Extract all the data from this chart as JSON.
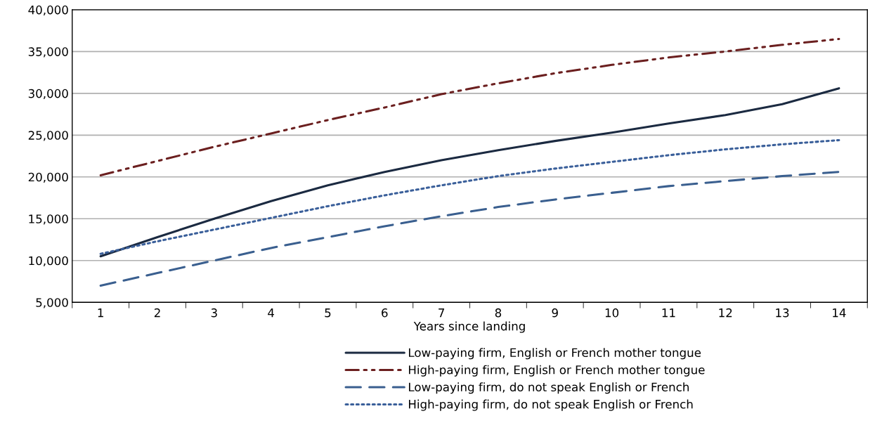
{
  "chart_data": {
    "type": "line",
    "xlabel": "Years since landing",
    "categories": [
      "1",
      "2",
      "3",
      "4",
      "5",
      "6",
      "7",
      "8",
      "9",
      "10",
      "11",
      "12",
      "13",
      "14"
    ],
    "series": [
      {
        "name": "Low-paying firm, English or French mother tongue",
        "color": "#1b2a41",
        "line_style": "solid",
        "values": [
          10500,
          12800,
          15000,
          17100,
          19000,
          20600,
          22000,
          23200,
          24300,
          25300,
          26400,
          27400,
          28700,
          30600
        ]
      },
      {
        "name": "High-paying firm, English or French mother tongue",
        "color": "#6b1f1f",
        "line_style": "dashdotdot",
        "values": [
          20200,
          21900,
          23600,
          25200,
          26800,
          28300,
          29900,
          31200,
          32400,
          33400,
          34300,
          35000,
          35800,
          36500
        ]
      },
      {
        "name": "Low-paying firm, do not speak English or French",
        "color": "#3a5f8f",
        "line_style": "dashed",
        "values": [
          7000,
          8500,
          10000,
          11500,
          12800,
          14100,
          15300,
          16400,
          17300,
          18100,
          18900,
          19500,
          20100,
          20600
        ]
      },
      {
        "name": "High-paying firm, do not speak English or French",
        "color": "#3a5f9a",
        "line_style": "dotted",
        "values": [
          10800,
          12300,
          13700,
          15100,
          16500,
          17800,
          19000,
          20100,
          21000,
          21800,
          22600,
          23300,
          23900,
          24400
        ]
      }
    ],
    "ylim": [
      5000,
      40000
    ],
    "yticks": [
      {
        "value": 5000,
        "label": "5,000"
      },
      {
        "value": 10000,
        "label": "10,000"
      },
      {
        "value": 15000,
        "label": "15,000"
      },
      {
        "value": 20000,
        "label": "20,000"
      },
      {
        "value": 25000,
        "label": "25,000"
      },
      {
        "value": 30000,
        "label": "30,000"
      },
      {
        "value": 35000,
        "label": "35,000"
      },
      {
        "value": 40000,
        "label": "40,000"
      }
    ],
    "grid": "y",
    "legend": "bottom",
    "marker": "none"
  }
}
